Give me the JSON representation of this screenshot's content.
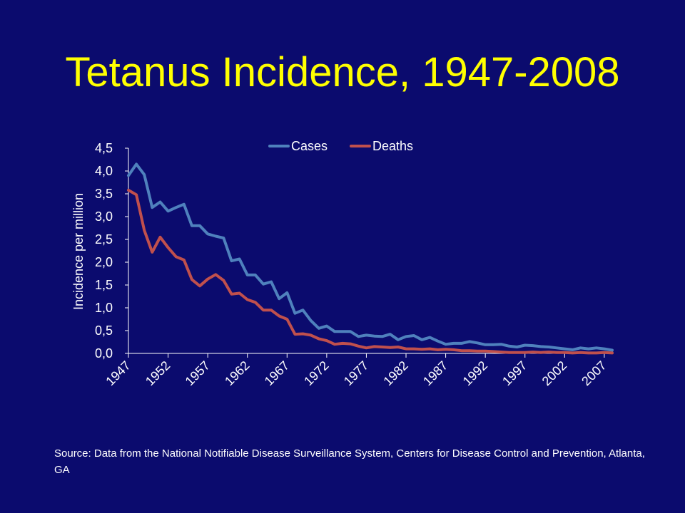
{
  "slide": {
    "title": "Tetanus Incidence, 1947-2008",
    "source": "Source: Data from the National Notifiable Disease Surveillance System, Centers for Disease Control and Prevention,  Atlanta, GA"
  },
  "colors": {
    "background": "#0b0b6e",
    "title": "#ffff00",
    "text": "#ffffff",
    "cases": "#4f81bd",
    "deaths": "#c0504d"
  },
  "chart_data": {
    "type": "line",
    "title": "",
    "xlabel": "",
    "ylabel": "Incidence per million",
    "xlim": [
      1947,
      2008
    ],
    "ylim": [
      0,
      4.5
    ],
    "grid": false,
    "legend_position": "top",
    "x_tick_labels": [
      "1947",
      "1952",
      "1957",
      "1962",
      "1967",
      "1972",
      "1977",
      "1982",
      "1987",
      "1992",
      "1997",
      "2002",
      "2007"
    ],
    "y_tick_labels": [
      "0,0",
      "0,5",
      "1,0",
      "1,5",
      "2,0",
      "2,5",
      "3,0",
      "3,5",
      "4,0",
      "4,5"
    ],
    "y_ticks": [
      0,
      0.5,
      1.0,
      1.5,
      2.0,
      2.5,
      3.0,
      3.5,
      4.0,
      4.5
    ],
    "x": [
      1947,
      1948,
      1949,
      1950,
      1951,
      1952,
      1953,
      1954,
      1955,
      1956,
      1957,
      1958,
      1959,
      1960,
      1961,
      1962,
      1963,
      1964,
      1965,
      1966,
      1967,
      1968,
      1969,
      1970,
      1971,
      1972,
      1973,
      1974,
      1975,
      1976,
      1977,
      1978,
      1979,
      1980,
      1981,
      1982,
      1983,
      1984,
      1985,
      1986,
      1987,
      1988,
      1989,
      1990,
      1991,
      1992,
      1993,
      1994,
      1995,
      1996,
      1997,
      1998,
      1999,
      2000,
      2001,
      2002,
      2003,
      2004,
      2005,
      2006,
      2007,
      2008
    ],
    "series": [
      {
        "name": "Cases",
        "color": "#4f81bd",
        "values": [
          3.9,
          4.15,
          3.92,
          3.2,
          3.32,
          3.12,
          3.2,
          3.27,
          2.8,
          2.8,
          2.62,
          2.57,
          2.53,
          2.03,
          2.07,
          1.72,
          1.72,
          1.52,
          1.57,
          1.2,
          1.33,
          0.88,
          0.95,
          0.72,
          0.55,
          0.6,
          0.48,
          0.48,
          0.48,
          0.37,
          0.4,
          0.38,
          0.37,
          0.42,
          0.3,
          0.37,
          0.39,
          0.3,
          0.35,
          0.27,
          0.2,
          0.22,
          0.22,
          0.26,
          0.23,
          0.19,
          0.19,
          0.2,
          0.16,
          0.14,
          0.18,
          0.17,
          0.15,
          0.14,
          0.12,
          0.1,
          0.08,
          0.12,
          0.1,
          0.12,
          0.1,
          0.07
        ]
      },
      {
        "name": "Deaths",
        "color": "#c0504d",
        "values": [
          3.58,
          3.48,
          2.7,
          2.22,
          2.55,
          2.32,
          2.12,
          2.05,
          1.62,
          1.48,
          1.63,
          1.73,
          1.6,
          1.3,
          1.32,
          1.18,
          1.12,
          0.95,
          0.95,
          0.82,
          0.75,
          0.42,
          0.43,
          0.4,
          0.32,
          0.28,
          0.2,
          0.22,
          0.21,
          0.16,
          0.12,
          0.15,
          0.14,
          0.13,
          0.14,
          0.1,
          0.1,
          0.09,
          0.1,
          0.08,
          0.09,
          0.08,
          0.06,
          0.06,
          0.05,
          0.05,
          0.04,
          0.03,
          0.02,
          0.02,
          0.02,
          0.03,
          0.02,
          0.03,
          0.02,
          0.02,
          0.01,
          0.02,
          0.01,
          0.01,
          0.02,
          0.01
        ]
      }
    ]
  }
}
